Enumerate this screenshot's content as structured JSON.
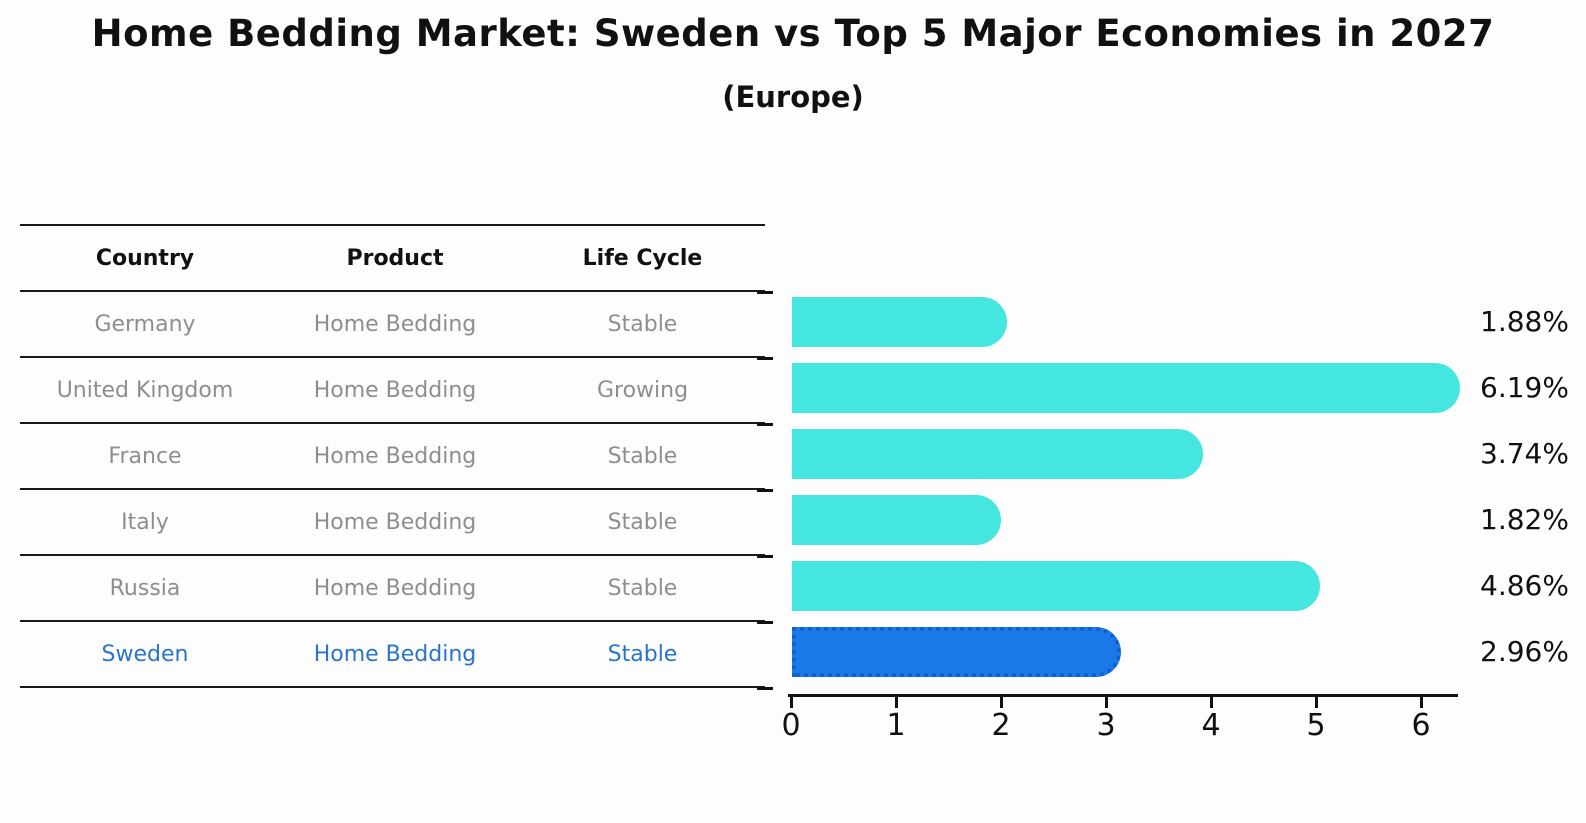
{
  "title": "Home Bedding Market: Sweden vs Top 5 Major Economies in 2027",
  "subtitle": "(Europe)",
  "colors": {
    "bar": "#45E5E0",
    "bar_highlight": "#1B78E8",
    "bar_highlight_dots": "#0F5ECF",
    "highlight_text": "#2B74CC",
    "row_text": "#8E8E8E",
    "heading_text": "#111111",
    "axis": "#111111"
  },
  "table": {
    "headers": [
      "Country",
      "Product",
      "Life Cycle"
    ],
    "rows": [
      {
        "cells": [
          "Germany",
          "Home Bedding",
          "Stable"
        ],
        "highlight": false
      },
      {
        "cells": [
          "United Kingdom",
          "Home Bedding",
          "Growing"
        ],
        "highlight": false
      },
      {
        "cells": [
          "France",
          "Home Bedding",
          "Stable"
        ],
        "highlight": false
      },
      {
        "cells": [
          "Italy",
          "Home Bedding",
          "Stable"
        ],
        "highlight": false
      },
      {
        "cells": [
          "Russia",
          "Home Bedding",
          "Stable"
        ],
        "highlight": false
      },
      {
        "cells": [
          "Sweden",
          "Home Bedding",
          "Stable"
        ],
        "highlight": true
      }
    ]
  },
  "chart_data": {
    "type": "bar",
    "orientation": "horizontal",
    "title": "Home Bedding Market: Sweden vs Top 5 Major Economies in 2027",
    "subtitle": "(Europe)",
    "categories": [
      "Germany",
      "United Kingdom",
      "France",
      "Italy",
      "Russia",
      "Sweden"
    ],
    "values": [
      1.88,
      6.19,
      3.74,
      1.82,
      4.86,
      2.96
    ],
    "value_labels": [
      "1.88%",
      "6.19%",
      "3.74%",
      "1.82%",
      "4.86%",
      "2.96%"
    ],
    "highlight_index": 5,
    "xlim": [
      0,
      6.5
    ],
    "xticks": [
      0,
      1,
      2,
      3,
      4,
      5,
      6
    ],
    "xlabel": "",
    "ylabel": "",
    "grid": false,
    "legend": null
  }
}
